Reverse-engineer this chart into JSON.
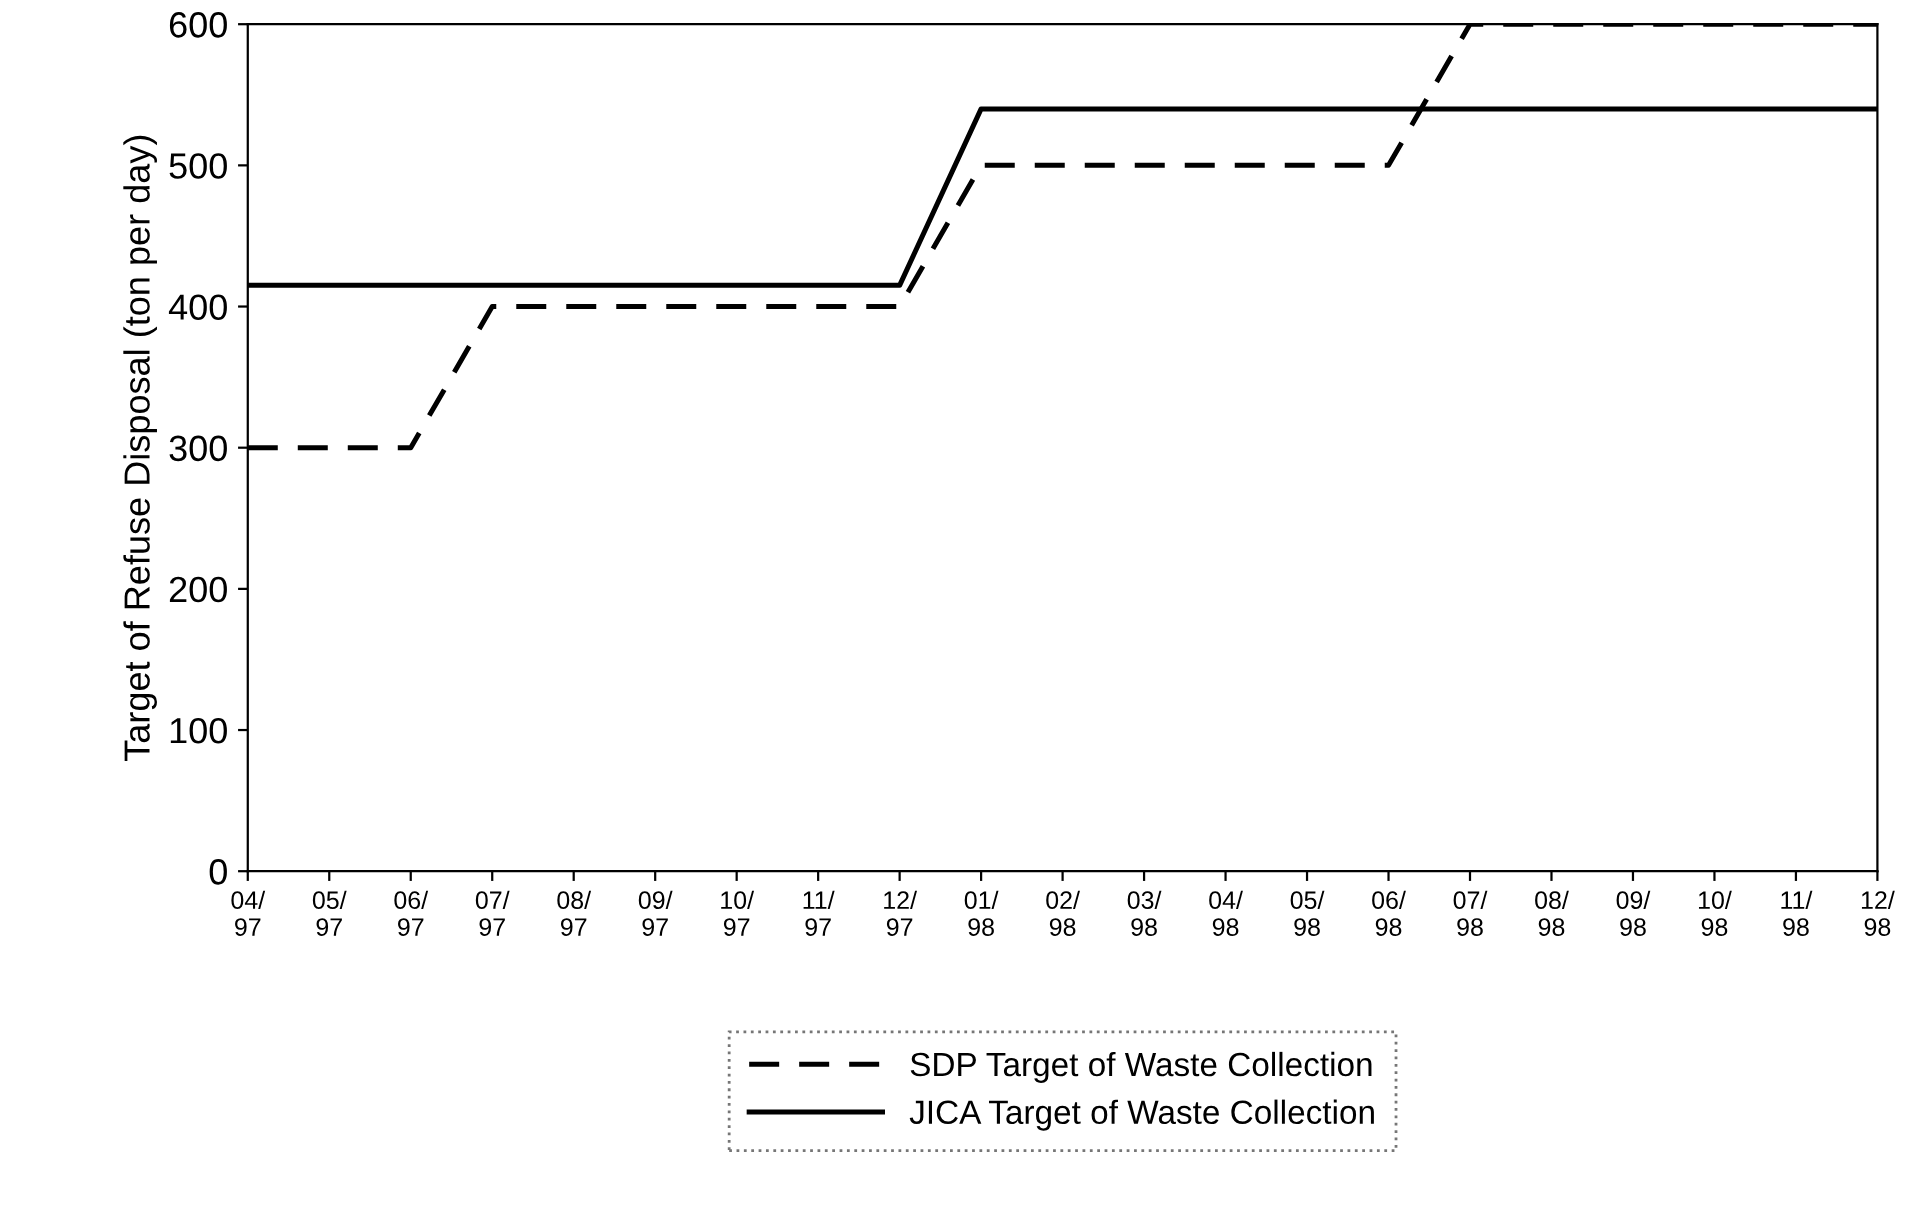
{
  "chart_data": {
    "type": "line",
    "ylabel": "Target of Refuse Disposal (ton per day)",
    "categories": [
      "04/\n97",
      "05/\n97",
      "06/\n97",
      "07/\n97",
      "08/\n97",
      "09/\n97",
      "10/\n97",
      "11/\n97",
      "12/\n97",
      "01/\n98",
      "02/\n98",
      "03/\n98",
      "04/\n98",
      "05/\n98",
      "06/\n98",
      "07/\n98",
      "08/\n98",
      "09/\n98",
      "10/\n98",
      "11/\n98",
      "12/\n98"
    ],
    "ylim": [
      0,
      600
    ],
    "yticks": [
      0,
      100,
      200,
      300,
      400,
      500,
      600
    ],
    "grid": false,
    "legend": "bottom",
    "marker": "none",
    "series": [
      {
        "name": "SDP Target of Waste Collection",
        "color": "#000000",
        "line_style": "dashed",
        "values": [
          300,
          300,
          300,
          400,
          400,
          400,
          400,
          400,
          400,
          500,
          500,
          500,
          500,
          500,
          500,
          600,
          600,
          600,
          600,
          600,
          600
        ]
      },
      {
        "name": "JICA Target of Waste Collection",
        "color": "#000000",
        "line_style": "solid",
        "values": [
          415,
          415,
          415,
          415,
          415,
          415,
          415,
          415,
          415,
          540,
          540,
          540,
          540,
          540,
          540,
          540,
          540,
          540,
          540,
          540,
          540
        ]
      }
    ]
  }
}
